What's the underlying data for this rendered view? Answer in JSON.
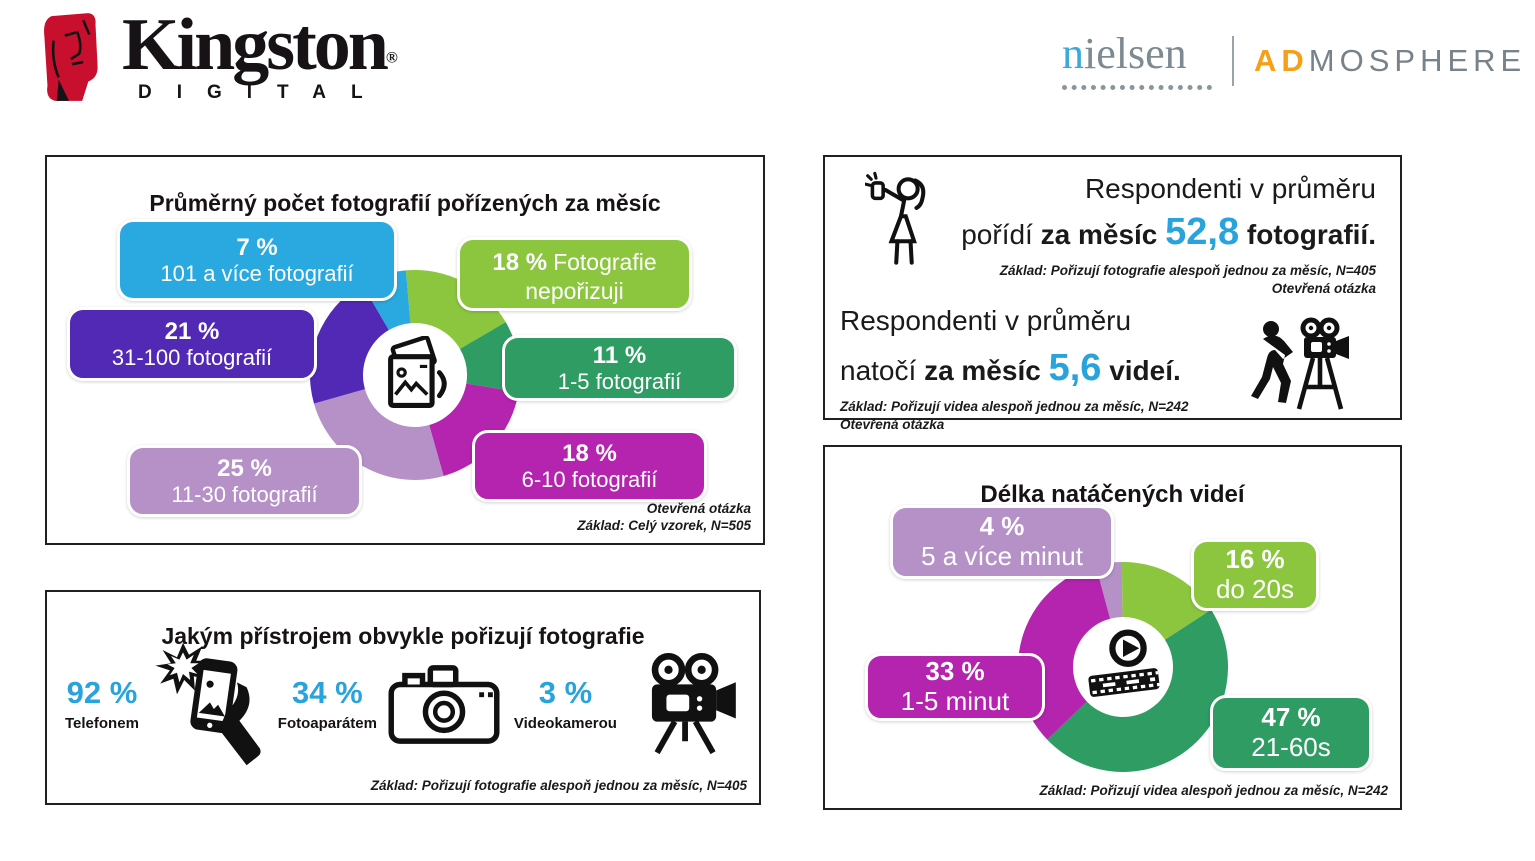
{
  "header": {
    "kingston": {
      "wordmark": "Kingston",
      "registered": "®",
      "sub": "DIGITAL"
    },
    "nielsen": {
      "wordmark_first": "n",
      "wordmark_rest": "ielsen",
      "admosphere_ad": "AD",
      "admosphere_rest": "MOSPHERE"
    }
  },
  "colors": {
    "accent_blue": "#29a3dc",
    "chip_blue": "#29a9df",
    "chip_lime": "#8cc63f",
    "chip_dark_purple": "#5129b5",
    "chip_dark_green": "#2f9c64",
    "chip_magenta": "#b424ae",
    "chip_light_purple": "#b591c8",
    "kingston_red": "#c8102e",
    "admosphere_orange": "#f6a01a"
  },
  "panels": {
    "photos": {
      "title": "Průměrný počet fotografií pořízených za měsíc",
      "chips": [
        {
          "pct": "7 %",
          "text": "101 a více fotografií",
          "color": "#29a9df"
        },
        {
          "pct": "18 %",
          "text": "Fotografie nepořizuji",
          "color": "#8cc63f"
        },
        {
          "pct": "21 %",
          "text": "31-100 fotografií",
          "color": "#5129b5"
        },
        {
          "pct": "11 %",
          "text": "1-5 fotografií",
          "color": "#2f9c64"
        },
        {
          "pct": "18 %",
          "text": "6-10 fotografií",
          "color": "#b424ae"
        },
        {
          "pct": "25 %",
          "text": "11-30 fotografií",
          "color": "#b591c8"
        }
      ],
      "note1": "Otevřená otázka",
      "note2": "Základ: Celý vzorek, N=505"
    },
    "averages": {
      "photos": {
        "line1": "Respondenti v průměru",
        "l2_regular": "pořídí ",
        "l2_bold": "za měsíc ",
        "value": "52,8",
        "l2_bold2": " fotografií.",
        "note1": "Základ: Pořizují fotografie alespoň jednou za měsíc, N=405",
        "note2": "Otevřená otázka"
      },
      "videos": {
        "line1": "Respondenti v průměru",
        "l2_regular": "natočí ",
        "l2_bold": "za měsíc ",
        "value": "5,6",
        "l2_bold2": " videí.",
        "note1": "Základ: Pořizují videa alespoň jednou za měsíc, N=242",
        "note2": "Otevřená otázka"
      }
    },
    "devices": {
      "title": "Jakým přístrojem obvykle pořizují fotografie",
      "items": [
        {
          "value": "92 %",
          "label": "Telefonem"
        },
        {
          "value": "34 %",
          "label": "Fotoaparátem"
        },
        {
          "value": "3 %",
          "label": "Videokamerou"
        }
      ],
      "note": "Základ: Pořizují fotografie alespoň jednou za měsíc, N=405"
    },
    "video_length": {
      "title": "Délka natáčených videí",
      "chips": [
        {
          "pct": "4 %",
          "text": "5 a více minut",
          "color": "#b591c8"
        },
        {
          "pct": "16 %",
          "text": "do 20s",
          "color": "#8cc63f"
        },
        {
          "pct": "33 %",
          "text": "1-5 minut",
          "color": "#b424ae"
        },
        {
          "pct": "47 %",
          "text": "21-60s",
          "color": "#2f9c64"
        }
      ],
      "note": "Základ: Pořizují videa alespoň jednou za měsíc, N=242"
    }
  },
  "chart_data": [
    {
      "type": "donut",
      "title": "Průměrný počet fotografií pořízených za měsíc",
      "unit": "%",
      "start_angle": -5,
      "segments": [
        {
          "label": "Fotografie nepořizuji",
          "value": 18,
          "color": "#8cc63f"
        },
        {
          "label": "1-5 fotografií",
          "value": 11,
          "color": "#2f9c64"
        },
        {
          "label": "6-10 fotografií",
          "value": 18,
          "color": "#b424ae"
        },
        {
          "label": "11-30 fotografií",
          "value": 25,
          "color": "#b591c8"
        },
        {
          "label": "31-100 fotografií",
          "value": 21,
          "color": "#5129b5"
        },
        {
          "label": "101 a více fotografií",
          "value": 7,
          "color": "#29a9df"
        }
      ],
      "base": "Celý vzorek, N=505"
    },
    {
      "type": "donut",
      "title": "Délka natáčených videí",
      "unit": "%",
      "start_angle": -15,
      "segments": [
        {
          "label": "5 a více minut",
          "value": 4,
          "color": "#b591c8"
        },
        {
          "label": "do 20s",
          "value": 16,
          "color": "#8cc63f"
        },
        {
          "label": "21-60s",
          "value": 47,
          "color": "#2f9c64"
        },
        {
          "label": "1-5 minut",
          "value": 33,
          "color": "#b424ae"
        }
      ],
      "base": "Pořizují videa alespoň jednou za měsíc, N=242"
    },
    {
      "type": "pictogram",
      "title": "Jakým přístrojem obvykle pořizují fotografie",
      "categories": [
        "Telefonem",
        "Fotoaparátem",
        "Videokamerou"
      ],
      "values": [
        92,
        34,
        3
      ],
      "unit": "%",
      "base": "Pořizují fotografie alespoň jednou za měsíc, N=405"
    }
  ]
}
